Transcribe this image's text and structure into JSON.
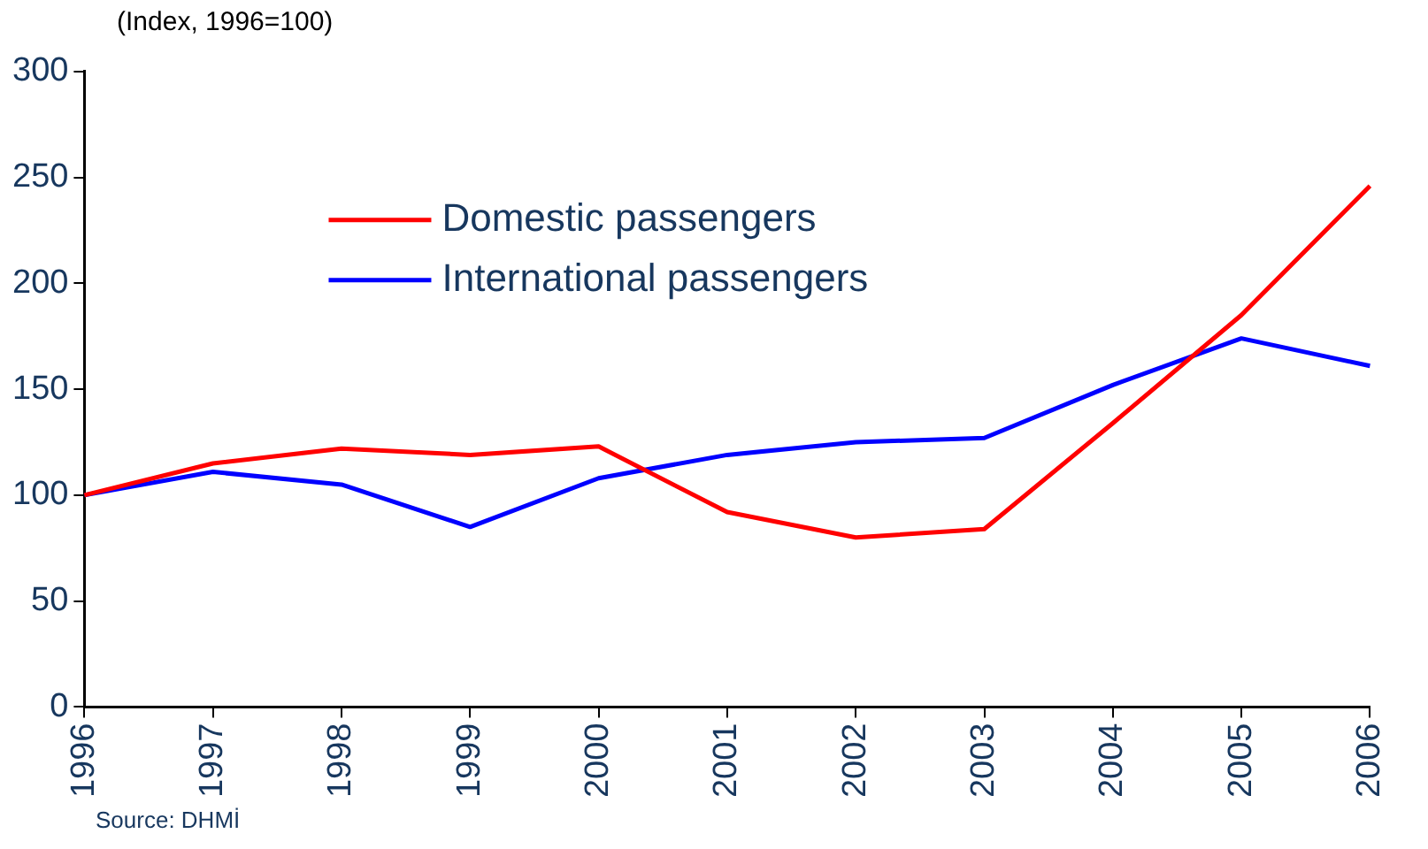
{
  "chart_data": {
    "type": "line",
    "ylabel": "(Index, 1996=100)",
    "categories": [
      "1996",
      "1997",
      "1998",
      "1999",
      "2000",
      "2001",
      "2002",
      "2003",
      "2004",
      "2005",
      "2006"
    ],
    "series": [
      {
        "name": "Domestic passengers",
        "color": "#ff0000",
        "values": [
          100,
          115,
          122,
          119,
          123,
          92,
          80,
          84,
          134,
          185,
          246
        ]
      },
      {
        "name": "International passengers",
        "color": "#0000ff",
        "values": [
          100,
          111,
          105,
          85,
          108,
          119,
          125,
          127,
          152,
          174,
          161
        ]
      }
    ],
    "ylim": [
      0,
      300
    ],
    "yticks": [
      0,
      50,
      100,
      150,
      200,
      250,
      300
    ],
    "grid": false,
    "legend": "top",
    "marker": "none",
    "annotations": [
      "Source: DHMİ"
    ]
  }
}
